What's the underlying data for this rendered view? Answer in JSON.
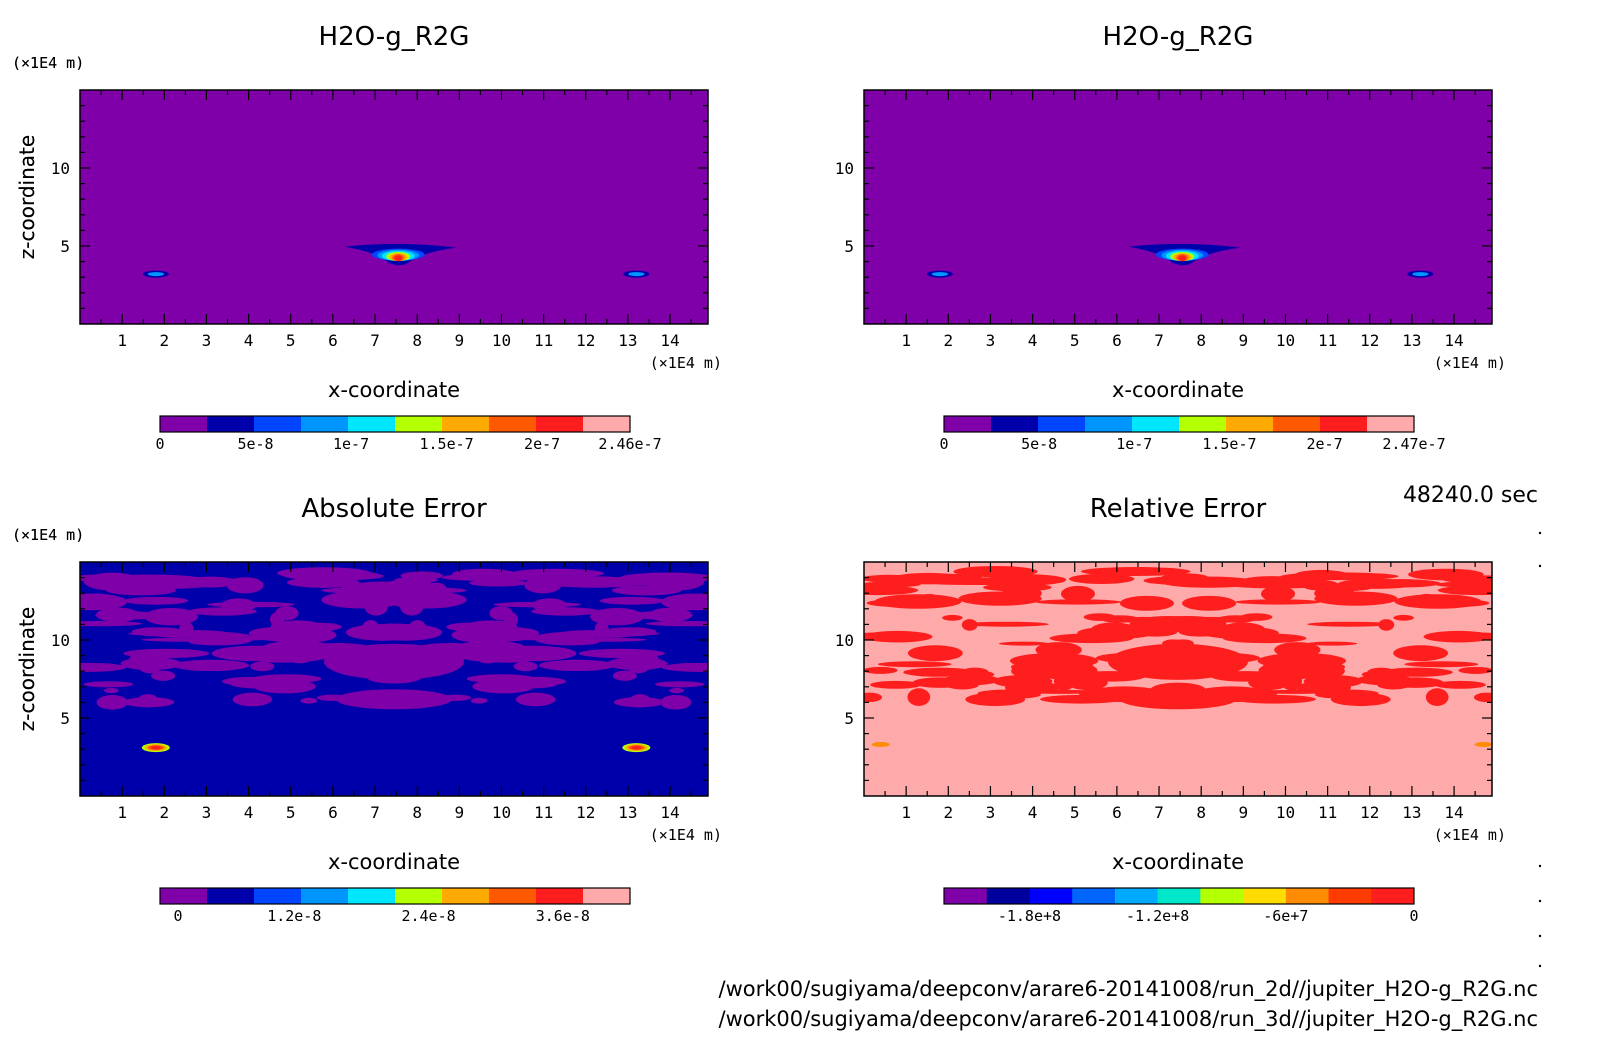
{
  "time_label": "48240.0 sec",
  "files": [
    "/work00/sugiyama/deepconv/arare6-20141008/run_2d//jupiter_H2O-g_R2G.nc",
    "/work00/sugiyama/deepconv/arare6-20141008/run_3d//jupiter_H2O-g_R2G.nc"
  ],
  "colors": {
    "rainbow": [
      "#7f00a8",
      "#0000aa",
      "#0046ff",
      "#0096ff",
      "#00e6ff",
      "#b4ff00",
      "#ffaa00",
      "#ff5a00",
      "#ff1e1e",
      "#ffaaaa"
    ],
    "relative": [
      "#7f00a8",
      "#00009c",
      "#0000ff",
      "#0064ff",
      "#00aaff",
      "#00e6c8",
      "#b4ff00",
      "#ffdc00",
      "#ff8c00",
      "#ff3c00",
      "#ff1e1e"
    ]
  },
  "chart_data": [
    {
      "type": "heatmap",
      "title": "H2O-g_R2G",
      "xlabel": "x-coordinate",
      "ylabel": "z-coordinate",
      "xunit": "(×1E4 m)",
      "yunit": "(×1E4 m)",
      "xlim": [
        0,
        14.9
      ],
      "ylim": [
        0,
        15
      ],
      "xticks": [
        1,
        2,
        3,
        4,
        5,
        6,
        7,
        8,
        9,
        10,
        11,
        12,
        13,
        14
      ],
      "yticks": [
        5,
        10
      ],
      "background_level": 0,
      "features": [
        {
          "x": 7.6,
          "z": 4.7,
          "peak": "2.46e-7"
        },
        {
          "x": 1.8,
          "z": 3.2,
          "peak": "5e-8"
        },
        {
          "x": 13.2,
          "z": 3.2,
          "peak": "5e-8"
        }
      ],
      "colorbar": {
        "labels": [
          "0",
          "5e-8",
          "1e-7",
          "1.5e-7",
          "2e-7",
          "2.46e-7"
        ],
        "min": 0,
        "max": 2.46e-07
      }
    },
    {
      "type": "heatmap",
      "title": "H2O-g_R2G",
      "xlabel": "x-coordinate",
      "ylabel": "z-coordinate",
      "xunit": "(×1E4 m)",
      "yunit": "(×1E4 m)",
      "xlim": [
        0,
        14.9
      ],
      "ylim": [
        0,
        15
      ],
      "xticks": [
        1,
        2,
        3,
        4,
        5,
        6,
        7,
        8,
        9,
        10,
        11,
        12,
        13,
        14
      ],
      "yticks": [
        5,
        10
      ],
      "background_level": 0,
      "features": [
        {
          "x": 7.6,
          "z": 4.7,
          "peak": "2.47e-7"
        },
        {
          "x": 1.8,
          "z": 3.2,
          "peak": "5e-8"
        },
        {
          "x": 13.2,
          "z": 3.2,
          "peak": "5e-8"
        }
      ],
      "colorbar": {
        "labels": [
          "0",
          "5e-8",
          "1e-7",
          "1.5e-7",
          "2e-7",
          "2.47e-7"
        ],
        "min": 0,
        "max": 2.47e-07
      }
    },
    {
      "type": "heatmap",
      "title": "Absolute Error",
      "xlabel": "x-coordinate",
      "ylabel": "z-coordinate",
      "xunit": "(×1E4 m)",
      "yunit": "(×1E4 m)",
      "xlim": [
        0,
        14.9
      ],
      "ylim": [
        0,
        15
      ],
      "xticks": [
        1,
        2,
        3,
        4,
        5,
        6,
        7,
        8,
        9,
        10,
        11,
        12,
        13,
        14
      ],
      "yticks": [
        5,
        10
      ],
      "background_level": 0,
      "features": [
        {
          "x": 1.8,
          "z": 3.1,
          "peak": "3.6e-8"
        },
        {
          "x": 13.2,
          "z": 3.1,
          "peak": "3.6e-8"
        }
      ],
      "colorbar": {
        "labels": [
          "0",
          "1.2e-8",
          "2.4e-8",
          "3.6e-8"
        ],
        "min": 0,
        "max": 4.2e-08
      }
    },
    {
      "type": "heatmap",
      "title": "Relative Error",
      "xlabel": "x-coordinate",
      "ylabel": "z-coordinate",
      "xunit": "(×1E4 m)",
      "yunit": "(×1E4 m)",
      "xlim": [
        0,
        14.9
      ],
      "ylim": [
        0,
        15
      ],
      "xticks": [
        1,
        2,
        3,
        4,
        5,
        6,
        7,
        8,
        9,
        10,
        11,
        12,
        13,
        14
      ],
      "yticks": [
        5,
        10
      ],
      "background_level": 0,
      "features": [
        {
          "x": 0.4,
          "z": 3.3,
          "peak": "-6e+7"
        },
        {
          "x": 14.7,
          "z": 3.3,
          "peak": "-6e+7"
        }
      ],
      "colorbar": {
        "labels": [
          "-1.8e+8",
          "-1.2e+8",
          "-6e+7",
          "0"
        ],
        "min": -220000000.0,
        "max": 0
      }
    }
  ]
}
